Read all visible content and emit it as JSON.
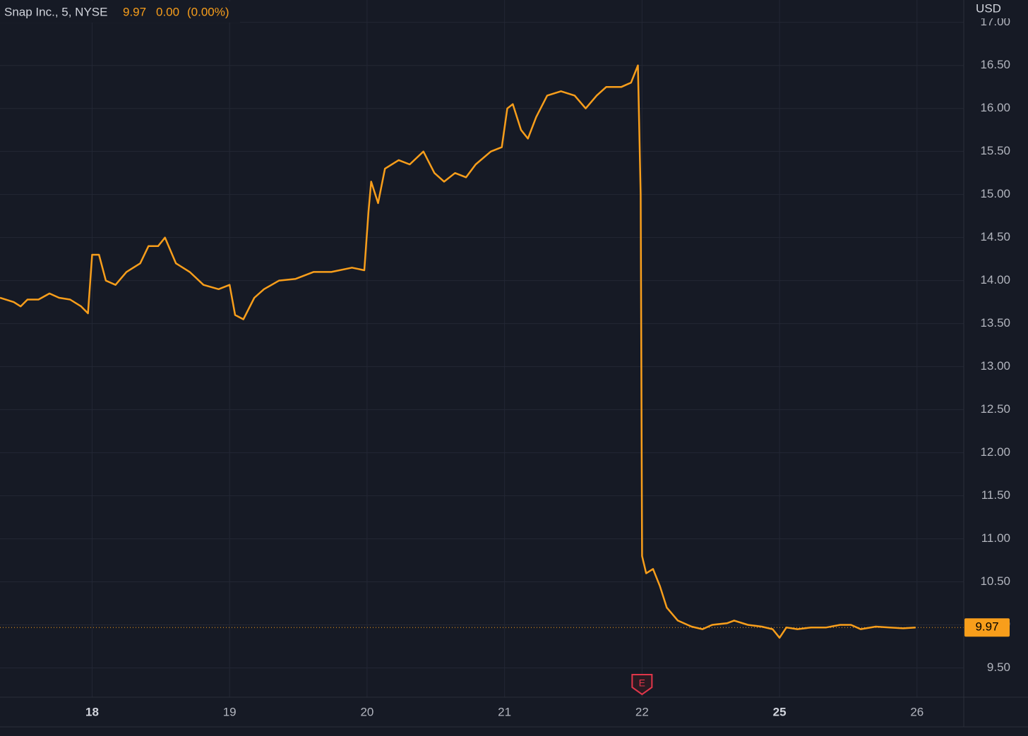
{
  "chart_data": {
    "type": "line",
    "title": "Snap Inc., 5, NYSE",
    "last_price": 9.97,
    "change": "0.00",
    "change_pct": "(0.00%)",
    "currency": "USD",
    "color": "#f89e1b",
    "grid": true,
    "earnings_marker": {
      "x": 5,
      "label": "E"
    },
    "xlim": [
      0.33,
      7.34
    ],
    "ylim": [
      9.16,
      17.26
    ],
    "xticks": [
      {
        "value": 1,
        "label": "18",
        "emphasis": true
      },
      {
        "value": 2,
        "label": "19"
      },
      {
        "value": 3,
        "label": "20"
      },
      {
        "value": 4,
        "label": "21"
      },
      {
        "value": 5,
        "label": "22"
      },
      {
        "value": 6,
        "label": "25",
        "emphasis": true
      },
      {
        "value": 7,
        "label": "26"
      }
    ],
    "yticks": [
      {
        "value": 9.5,
        "label": "9.50"
      },
      {
        "value": 10,
        "label": "10.00"
      },
      {
        "value": 10.5,
        "label": "10.50"
      },
      {
        "value": 11,
        "label": "11.00"
      },
      {
        "value": 11.5,
        "label": "11.50"
      },
      {
        "value": 12,
        "label": "12.00"
      },
      {
        "value": 12.5,
        "label": "12.50"
      },
      {
        "value": 13,
        "label": "13.00"
      },
      {
        "value": 13.5,
        "label": "13.50"
      },
      {
        "value": 14,
        "label": "14.00"
      },
      {
        "value": 14.5,
        "label": "14.50"
      },
      {
        "value": 15,
        "label": "15.00"
      },
      {
        "value": 15.5,
        "label": "15.50"
      },
      {
        "value": 16,
        "label": "16.00"
      },
      {
        "value": 16.5,
        "label": "16.50"
      },
      {
        "value": 17,
        "label": "17.00"
      }
    ],
    "x": [
      0.33,
      0.43,
      0.48,
      0.53,
      0.61,
      0.69,
      0.76,
      0.84,
      0.92,
      0.97,
      1.0,
      1.05,
      1.1,
      1.17,
      1.25,
      1.35,
      1.41,
      1.48,
      1.53,
      1.61,
      1.71,
      1.81,
      1.92,
      2.0,
      2.04,
      2.1,
      2.18,
      2.25,
      2.36,
      2.48,
      2.61,
      2.74,
      2.89,
      2.98,
      3.01,
      3.03,
      3.08,
      3.13,
      3.23,
      3.31,
      3.41,
      3.49,
      3.56,
      3.64,
      3.72,
      3.79,
      3.9,
      3.98,
      4.02,
      4.06,
      4.12,
      4.17,
      4.23,
      4.31,
      4.41,
      4.51,
      4.59,
      4.67,
      4.74,
      4.85,
      4.92,
      4.97,
      4.99,
      5.0,
      5.03,
      5.08,
      5.13,
      5.18,
      5.26,
      5.36,
      5.44,
      5.51,
      5.62,
      5.67,
      5.77,
      5.87,
      5.95,
      6.0,
      6.05,
      6.13,
      6.23,
      6.34,
      6.44,
      6.52,
      6.59,
      6.7,
      6.8,
      6.9,
      6.99
    ],
    "values": [
      13.8,
      13.75,
      13.7,
      13.78,
      13.78,
      13.85,
      13.8,
      13.78,
      13.7,
      13.62,
      14.3,
      14.3,
      14.0,
      13.95,
      14.1,
      14.2,
      14.4,
      14.4,
      14.5,
      14.2,
      14.1,
      13.95,
      13.9,
      13.95,
      13.6,
      13.55,
      13.8,
      13.9,
      14.0,
      14.02,
      14.1,
      14.1,
      14.15,
      14.12,
      14.8,
      15.15,
      14.9,
      15.3,
      15.4,
      15.35,
      15.5,
      15.25,
      15.15,
      15.25,
      15.2,
      15.35,
      15.5,
      15.55,
      16.0,
      16.05,
      15.75,
      15.65,
      15.9,
      16.15,
      16.2,
      16.15,
      16.0,
      16.15,
      16.25,
      16.25,
      16.3,
      16.5,
      15.0,
      10.8,
      10.6,
      10.65,
      10.45,
      10.2,
      10.05,
      9.98,
      9.95,
      10.0,
      10.02,
      10.05,
      10.0,
      9.98,
      9.95,
      9.85,
      9.97,
      9.95,
      9.97,
      9.97,
      10.0,
      10.0,
      9.95,
      9.98,
      9.97,
      9.96,
      9.97
    ]
  }
}
